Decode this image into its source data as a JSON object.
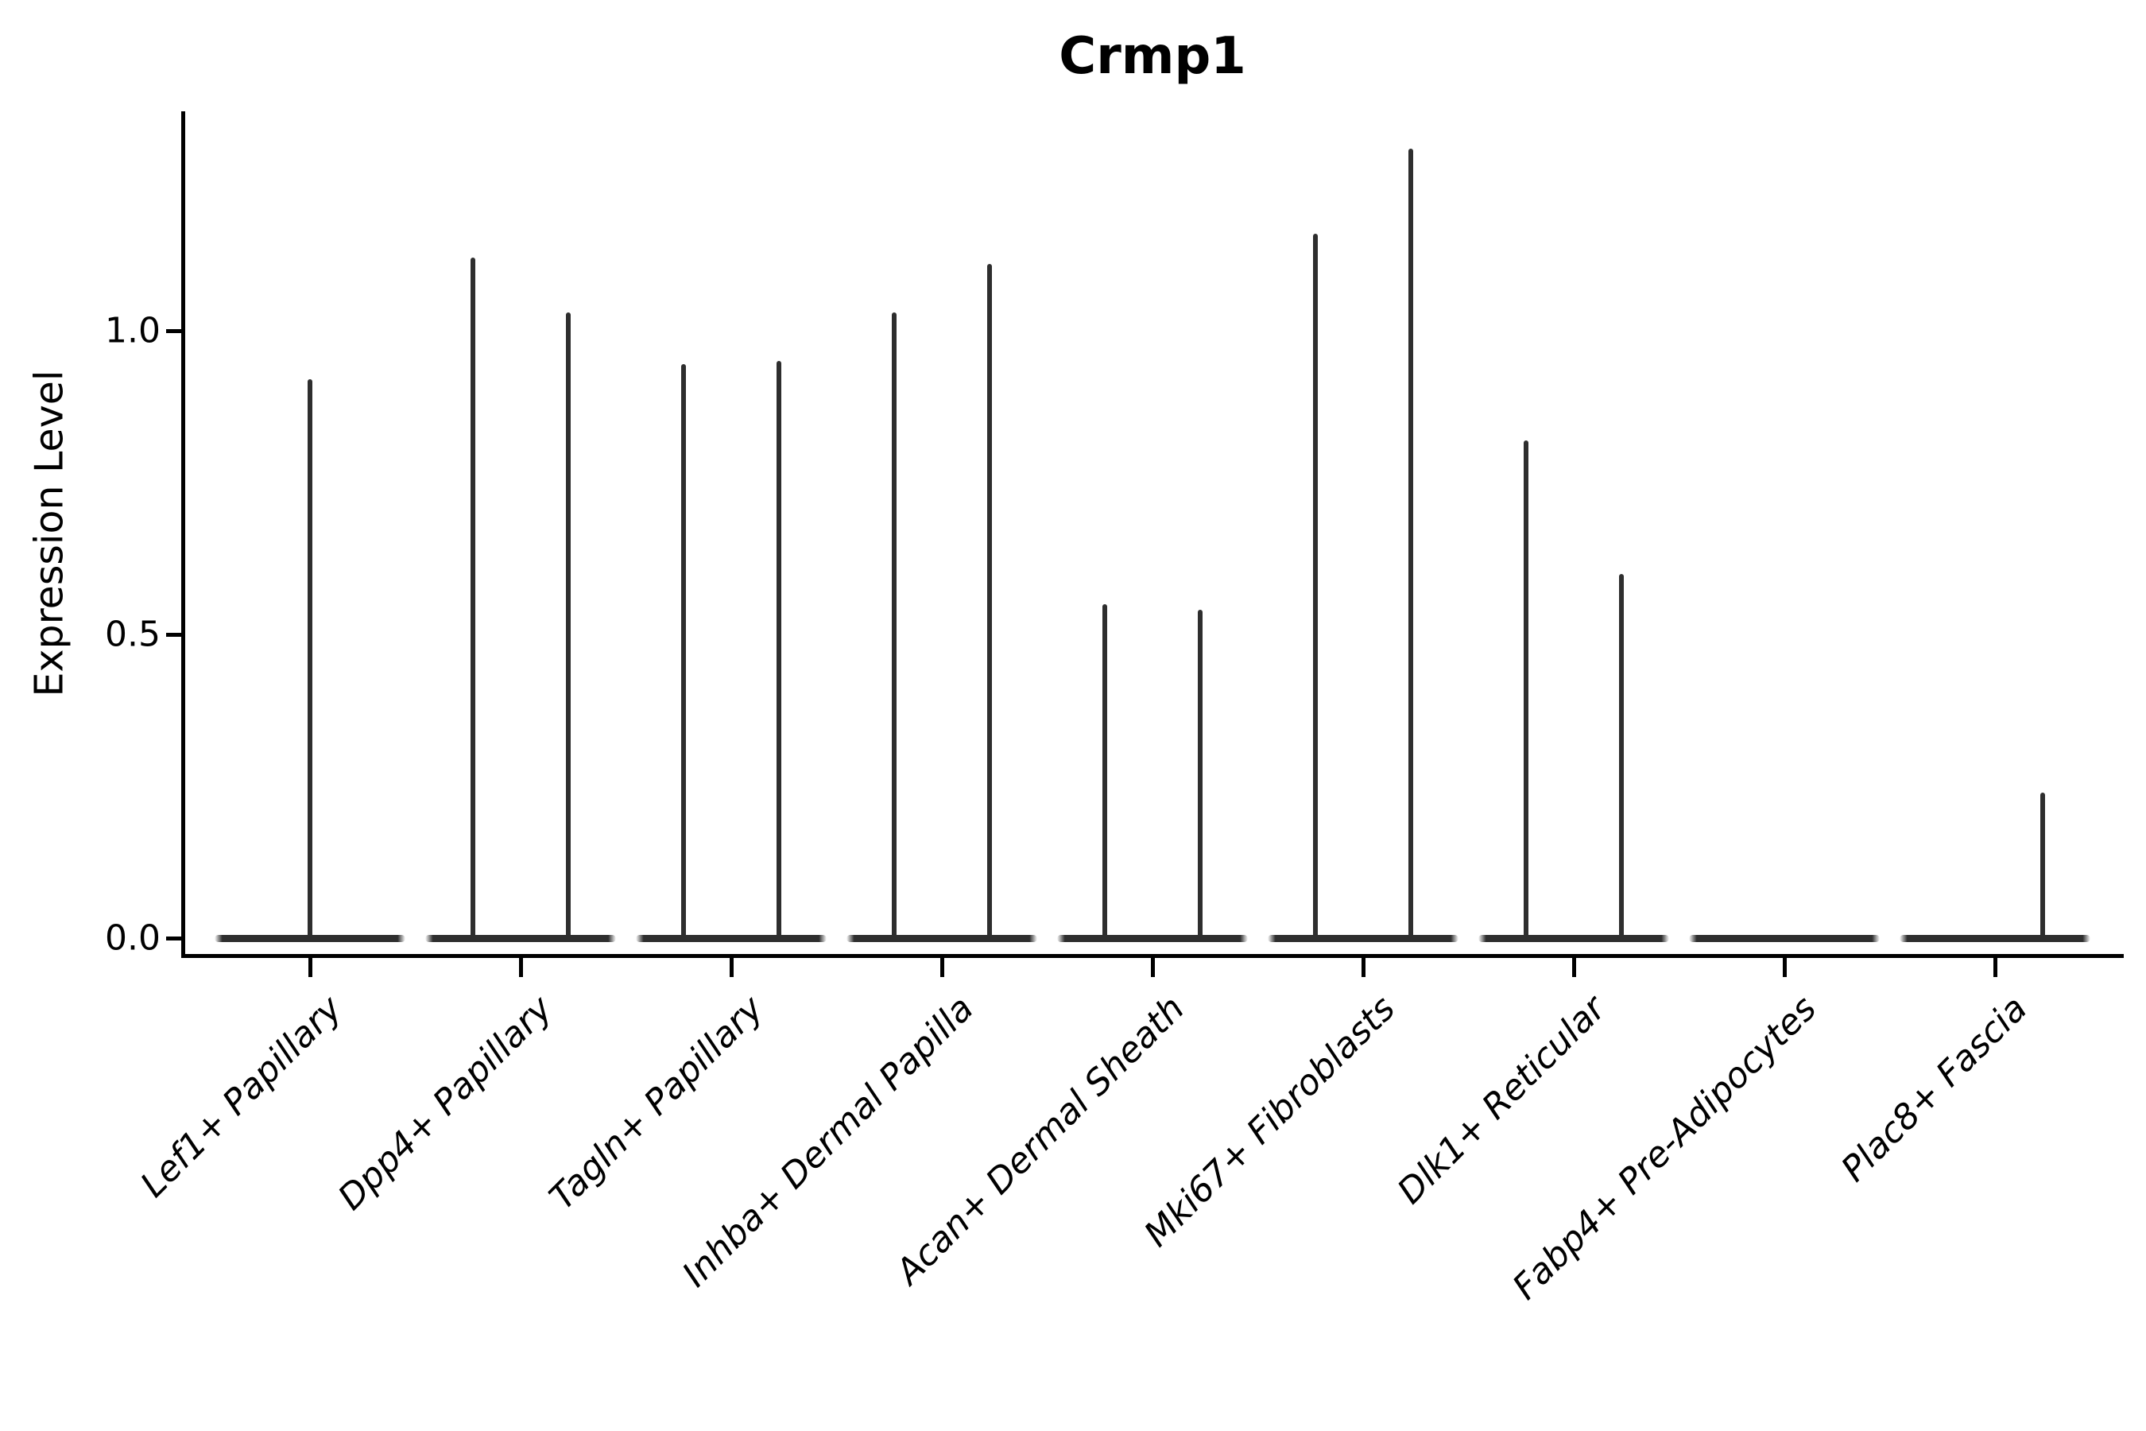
{
  "chart_data": {
    "type": "violin",
    "title": "Crmp1",
    "ylabel": "Expression Level",
    "xlabel": "",
    "ylim": [
      -0.03,
      1.36
    ],
    "yticks": [
      {
        "value": 1.0,
        "label": "1.0"
      },
      {
        "value": 0.5,
        "label": "0.5"
      },
      {
        "value": 0.0,
        "label": "0.0"
      }
    ],
    "grid": false,
    "legend": "none",
    "x_tick_rotation_deg": 45,
    "categories": [
      "Lef1+ Papillary",
      "Dpp4+ Papillary",
      "Tagln+ Papillary",
      "Inhba+ Dermal Papilla",
      "Acan+ Dermal Sheath",
      "Mki67+ Fibroblasts",
      "Dlk1+ Reticular",
      "Fabp4+ Pre-Adipocytes",
      "Plac8+ Fascia"
    ],
    "violins": [
      {
        "category": "Lef1+ Papillary",
        "base_at_zero": true,
        "spikes": [
          {
            "position": "center",
            "max": 0.92
          }
        ]
      },
      {
        "category": "Dpp4+ Papillary",
        "base_at_zero": true,
        "spikes": [
          {
            "position": "left",
            "max": 1.12
          },
          {
            "position": "right",
            "max": 1.03
          }
        ]
      },
      {
        "category": "Tagln+ Papillary",
        "base_at_zero": true,
        "spikes": [
          {
            "position": "left",
            "max": 0.945
          },
          {
            "position": "right",
            "max": 0.95
          }
        ]
      },
      {
        "category": "Inhba+ Dermal Papilla",
        "base_at_zero": true,
        "spikes": [
          {
            "position": "left",
            "max": 1.03
          },
          {
            "position": "right",
            "max": 1.11
          }
        ]
      },
      {
        "category": "Acan+ Dermal Sheath",
        "base_at_zero": true,
        "spikes": [
          {
            "position": "left",
            "max": 0.55
          },
          {
            "position": "right",
            "max": 0.54
          }
        ]
      },
      {
        "category": "Mki67+ Fibroblasts",
        "base_at_zero": true,
        "spikes": [
          {
            "position": "left",
            "max": 1.16
          },
          {
            "position": "right",
            "max": 1.3
          }
        ]
      },
      {
        "category": "Dlk1+ Reticular",
        "base_at_zero": true,
        "spikes": [
          {
            "position": "left",
            "max": 0.82
          },
          {
            "position": "right",
            "max": 0.6
          }
        ]
      },
      {
        "category": "Fabp4+ Pre-Adipocytes",
        "base_at_zero": true,
        "spikes": []
      },
      {
        "category": "Plac8+ Fascia",
        "base_at_zero": true,
        "spikes": [
          {
            "position": "right",
            "max": 0.24
          }
        ]
      }
    ],
    "colors": {
      "violin": "#2e2e2e",
      "axis": "#000000",
      "text": "#000000",
      "background": "#ffffff"
    }
  }
}
